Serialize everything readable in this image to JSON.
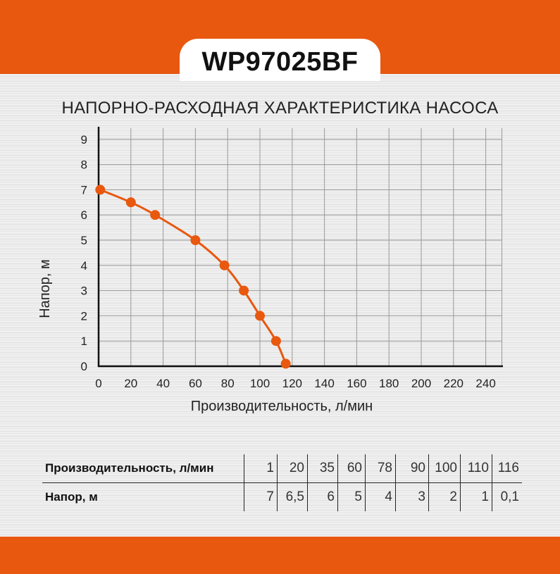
{
  "header": {
    "model": "WP97025BF",
    "subtitle": "НАПОРНО-РАСХОДНАЯ ХАРАКТЕРИСТИКА НАСОСА"
  },
  "colors": {
    "accent": "#e8580f"
  },
  "chart_data": {
    "type": "line",
    "title": "НАПОРНО-РАСХОДНАЯ ХАРАКТЕРИСТИКА НАСОСА",
    "xlabel": "Производительность, л/мин",
    "ylabel": "Напор, м",
    "xlim": [
      0,
      250
    ],
    "ylim": [
      0,
      9
    ],
    "xticks": [
      0,
      20,
      40,
      60,
      80,
      100,
      120,
      140,
      160,
      180,
      200,
      220,
      240
    ],
    "yticks": [
      0,
      1,
      2,
      3,
      4,
      5,
      6,
      7,
      8,
      9
    ],
    "grid": true,
    "x": [
      1,
      20,
      35,
      60,
      78,
      90,
      100,
      110,
      116
    ],
    "y": [
      7,
      6.5,
      6,
      5,
      4,
      3,
      2,
      1,
      0.1
    ]
  },
  "table": {
    "row_labels": [
      "Производительность, л/мин",
      "Напор, м"
    ],
    "flow": [
      "1",
      "20",
      "35",
      "60",
      "78",
      "90",
      "100",
      "110",
      "116"
    ],
    "head": [
      "7",
      "6,5",
      "6",
      "5",
      "4",
      "3",
      "2",
      "1",
      "0,1"
    ]
  }
}
